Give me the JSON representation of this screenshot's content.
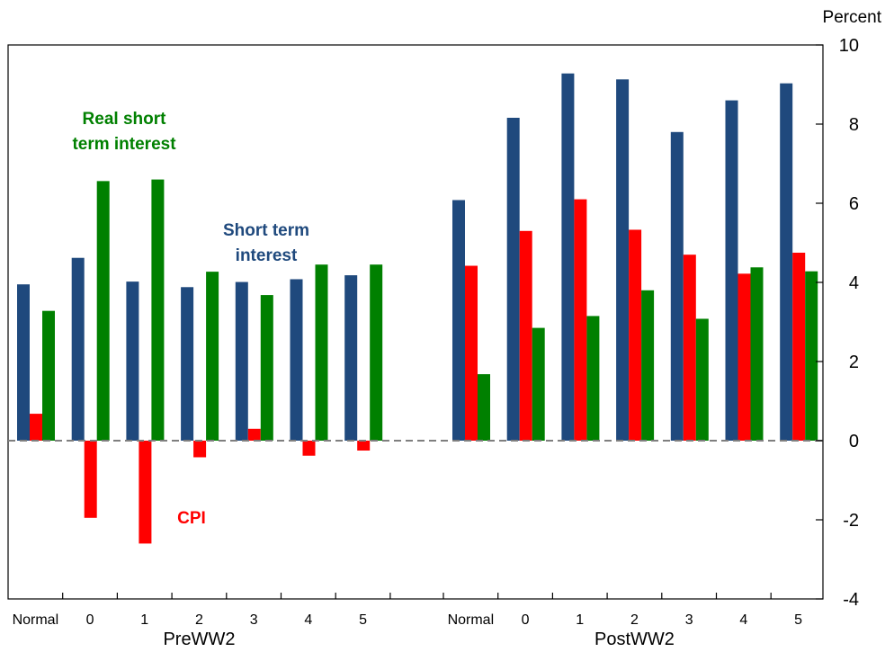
{
  "chart_data": {
    "type": "bar",
    "y_unit_label": "Percent",
    "ylim": [
      -4,
      10
    ],
    "y_ticks": [
      "10",
      "8",
      "6",
      "4",
      "2",
      "0",
      "-2",
      "-4"
    ],
    "y_tick_values": [
      10,
      8,
      6,
      4,
      2,
      0,
      -2,
      -4
    ],
    "y_axis_position": "right",
    "zero_line": "dashed",
    "grid": false,
    "groups": [
      {
        "name": "PreWW2",
        "categories": [
          "Normal",
          "0",
          "1",
          "2",
          "3",
          "4",
          "5"
        ]
      },
      {
        "name": "PostWW2",
        "categories": [
          "Normal",
          "0",
          "1",
          "2",
          "3",
          "4",
          "5"
        ]
      }
    ],
    "series": [
      {
        "name": "Short term interest",
        "color": "#1f497d",
        "values": [
          3.95,
          4.62,
          4.02,
          3.88,
          4.01,
          4.08,
          4.18,
          6.08,
          8.16,
          9.28,
          9.13,
          7.8,
          8.6,
          9.03
        ]
      },
      {
        "name": "CPI",
        "color": "#ff0000",
        "values": [
          0.68,
          -1.95,
          -2.6,
          -0.42,
          0.3,
          -0.38,
          -0.25,
          4.42,
          5.3,
          6.1,
          5.33,
          4.7,
          4.22,
          4.75
        ]
      },
      {
        "name": "Real short term interest",
        "color": "#008000",
        "values": [
          3.28,
          6.56,
          6.6,
          4.27,
          3.68,
          4.45,
          4.45,
          1.68,
          2.85,
          3.15,
          3.8,
          3.08,
          4.38,
          4.28
        ]
      }
    ],
    "annotations": [
      {
        "lines": [
          "Real short",
          "term interest"
        ],
        "color": "#008000"
      },
      {
        "lines": [
          "Short term",
          "interest"
        ],
        "color": "#1f497d"
      },
      {
        "lines": [
          "CPI"
        ],
        "color": "#ff0000"
      }
    ]
  }
}
